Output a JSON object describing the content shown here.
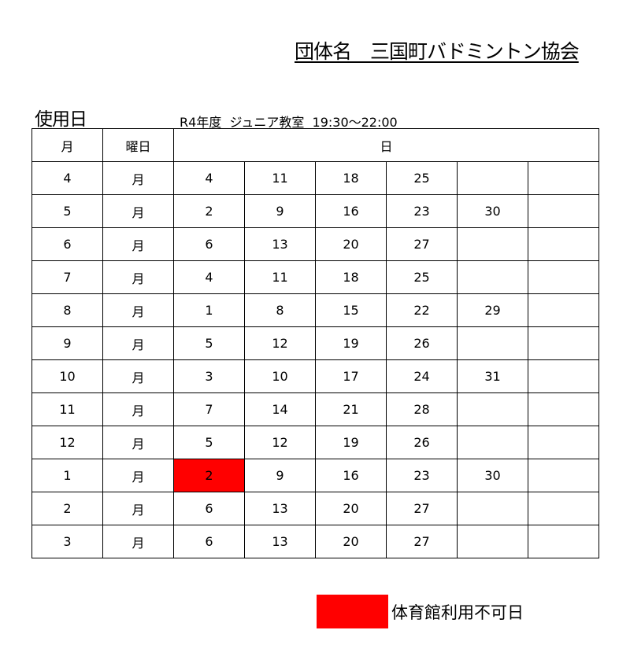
{
  "organization": "団体名　三国町バドミントン協会",
  "section_title": "使用日",
  "subtitle": "R4年度  ジュニア教室  19:30～22:00",
  "table": {
    "headers": [
      "月",
      "曜日",
      "日"
    ],
    "rows": [
      {
        "month": "4",
        "weekday": "月",
        "days": [
          "4",
          "11",
          "18",
          "25",
          "",
          ""
        ]
      },
      {
        "month": "5",
        "weekday": "月",
        "days": [
          "2",
          "9",
          "16",
          "23",
          "30",
          ""
        ]
      },
      {
        "month": "6",
        "weekday": "月",
        "days": [
          "6",
          "13",
          "20",
          "27",
          "",
          ""
        ]
      },
      {
        "month": "7",
        "weekday": "月",
        "days": [
          "4",
          "11",
          "18",
          "25",
          "",
          ""
        ]
      },
      {
        "month": "8",
        "weekday": "月",
        "days": [
          "1",
          "8",
          "15",
          "22",
          "29",
          ""
        ]
      },
      {
        "month": "9",
        "weekday": "月",
        "days": [
          "5",
          "12",
          "19",
          "26",
          "",
          ""
        ]
      },
      {
        "month": "10",
        "weekday": "月",
        "days": [
          "3",
          "10",
          "17",
          "24",
          "31",
          ""
        ]
      },
      {
        "month": "11",
        "weekday": "月",
        "days": [
          "7",
          "14",
          "21",
          "28",
          "",
          ""
        ]
      },
      {
        "month": "12",
        "weekday": "月",
        "days": [
          "5",
          "12",
          "19",
          "26",
          "",
          ""
        ]
      },
      {
        "month": "1",
        "weekday": "月",
        "days": [
          "2",
          "9",
          "16",
          "23",
          "30",
          ""
        ],
        "unavailable": [
          0
        ]
      },
      {
        "month": "2",
        "weekday": "月",
        "days": [
          "6",
          "13",
          "20",
          "27",
          "",
          ""
        ]
      },
      {
        "month": "3",
        "weekday": "月",
        "days": [
          "6",
          "13",
          "20",
          "27",
          "",
          ""
        ]
      }
    ]
  },
  "legend": {
    "label": "体育館利用不可日",
    "color": "#ff0000"
  }
}
